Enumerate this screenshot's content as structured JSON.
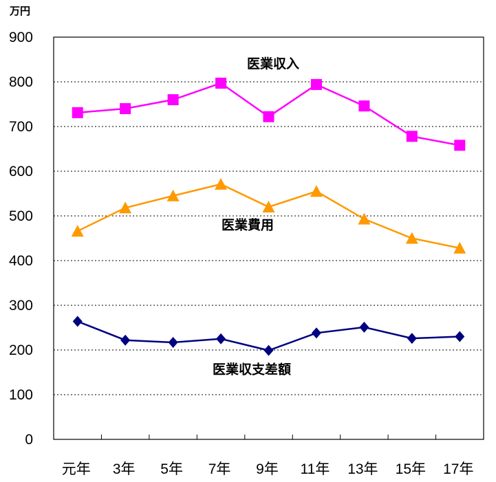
{
  "chart_data": {
    "type": "line",
    "y_unit": "万円",
    "ylim": [
      0,
      900
    ],
    "y_ticks": [
      0,
      100,
      200,
      300,
      400,
      500,
      600,
      700,
      800,
      900
    ],
    "categories": [
      "元年",
      "3年",
      "5年",
      "7年",
      "9年",
      "11年",
      "13年",
      "15年",
      "17年"
    ],
    "grid": "horizontal-dotted",
    "series": [
      {
        "name": "医業収入",
        "color": "#ff00ff",
        "marker": "square",
        "values": [
          731,
          740,
          760,
          797,
          722,
          794,
          746,
          678,
          658
        ]
      },
      {
        "name": "医業費用",
        "color": "#ff9900",
        "marker": "triangle",
        "values": [
          466,
          518,
          545,
          571,
          520,
          555,
          493,
          450,
          428
        ]
      },
      {
        "name": "医業収支差額",
        "color": "#000080",
        "marker": "diamond",
        "values": [
          264,
          222,
          217,
          225,
          199,
          238,
          251,
          226,
          230
        ]
      }
    ]
  }
}
